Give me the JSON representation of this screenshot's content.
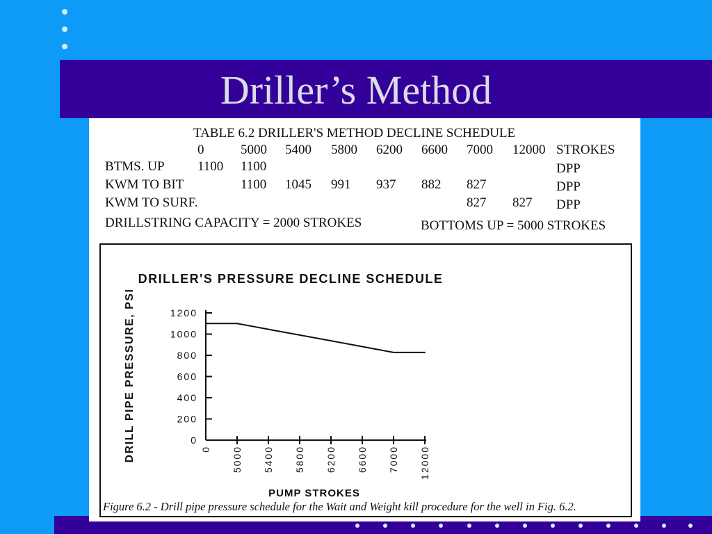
{
  "slide": {
    "title": "Driller’s Method",
    "colors": {
      "background": "#0d9bf7",
      "band": "#330099",
      "title": "#dcdce8"
    }
  },
  "table": {
    "caption": "TABLE 6.2 DRILLER'S METHOD DECLINE SCHEDULE",
    "header": [
      "0",
      "5000",
      "5400",
      "5800",
      "6200",
      "6600",
      "7000",
      "12000",
      "STROKES"
    ],
    "rows": [
      {
        "label": "BTMS. UP",
        "values": [
          "1100",
          "1100",
          "",
          "",
          "",
          "",
          "",
          ""
        ],
        "unit": "DPP"
      },
      {
        "label": "KWM TO BIT",
        "values": [
          "",
          "1100",
          "1045",
          "991",
          "937",
          "882",
          "827",
          ""
        ],
        "unit": "DPP"
      },
      {
        "label": "KWM TO SURF.",
        "values": [
          "",
          "",
          "",
          "",
          "",
          "",
          "827",
          "827"
        ],
        "unit": "DPP"
      }
    ],
    "footer_left": "DRILLSTRING CAPACITY = 2000 STROKES",
    "footer_right": "BOTTOMS UP = 5000 STROKES"
  },
  "chart_data": {
    "type": "line",
    "title": "DRILLER'S PRESSURE DECLINE SCHEDULE",
    "xlabel": "PUMP STROKES",
    "ylabel": "DRILL PIPE PRESSURE, PSI",
    "categories": [
      "0",
      "5000",
      "5400",
      "5800",
      "6200",
      "6600",
      "7000",
      "12000"
    ],
    "yticks": [
      "0",
      "200",
      "400",
      "600",
      "800",
      "1000",
      "1200"
    ],
    "ylim": [
      0,
      1200
    ],
    "series": [
      {
        "values": [
          1100,
          1100,
          1045,
          991,
          937,
          882,
          827,
          827
        ]
      }
    ],
    "caption": "Figure 6.2 - Drill pipe pressure schedule for the Wait and Weight kill procedure for the well in Fig. 6.2.",
    "grid": false,
    "legend": "none"
  }
}
